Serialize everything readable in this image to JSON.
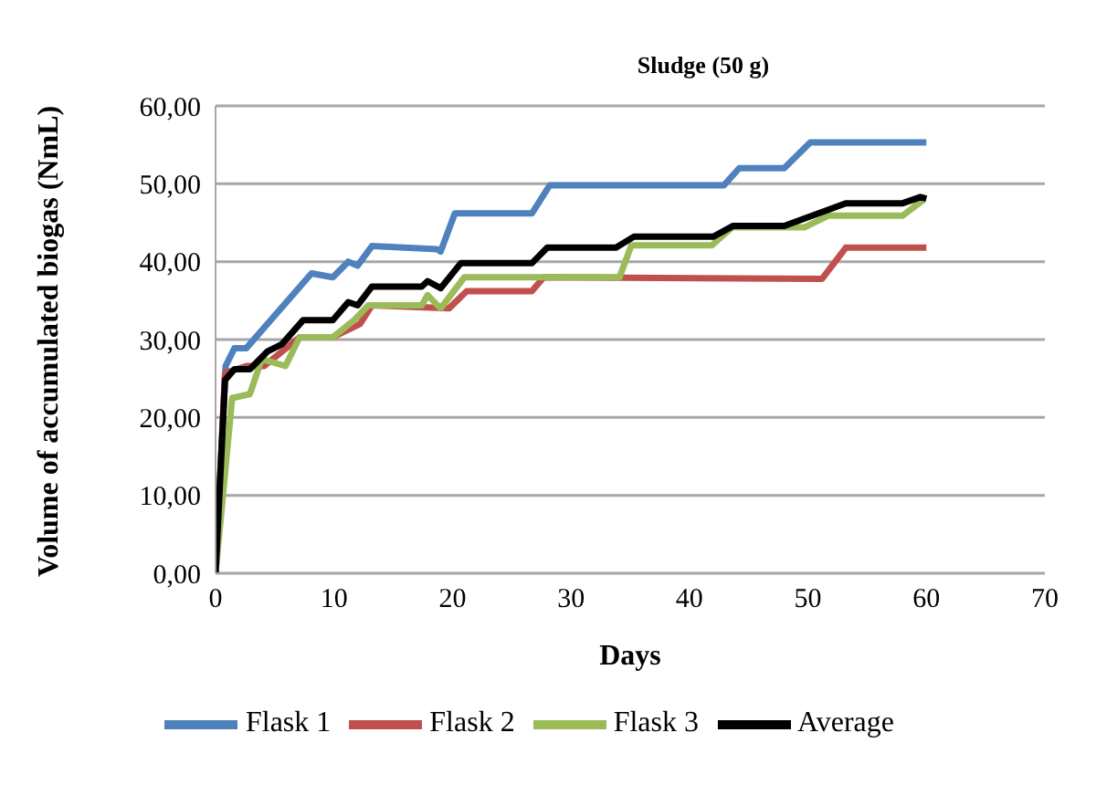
{
  "chart_data": {
    "type": "line",
    "title": "Sludge (50 g)",
    "xlabel": "Days",
    "ylabel": "Volume of accumulated biogas (NmL)",
    "xlim": [
      0,
      70
    ],
    "xticks": [
      0,
      10,
      20,
      30,
      40,
      50,
      60,
      70
    ],
    "ylim": [
      0,
      60
    ],
    "yticks": [
      {
        "value": 0,
        "label": "0,00"
      },
      {
        "value": 10,
        "label": "10,00"
      },
      {
        "value": 20,
        "label": "20,00"
      },
      {
        "value": 30,
        "label": "30,00"
      },
      {
        "value": 40,
        "label": "40,00"
      },
      {
        "value": 50,
        "label": "50,00"
      },
      {
        "value": 60,
        "label": "60,00"
      }
    ],
    "grid": "y",
    "legend": "bottom",
    "marker": "none",
    "line_style": "solid",
    "series": [
      {
        "name": "Flask 1",
        "color": "#4f81bd",
        "x": [
          0,
          0.85,
          1.6,
          2.6,
          8.1,
          9.9,
          11.2,
          12,
          13.2,
          18.7,
          19,
          20.2,
          26.7,
          28.2,
          42.9,
          44.2,
          48,
          50.2,
          60
        ],
        "values": [
          0,
          26.6,
          28.9,
          28.9,
          38.5,
          38,
          40,
          39.5,
          42,
          41.6,
          41.3,
          46.2,
          46.2,
          49.8,
          49.8,
          52,
          52,
          55.3,
          55.3
        ]
      },
      {
        "name": "Flask 2",
        "color": "#c0504d",
        "x": [
          0,
          0.8,
          2.6,
          4.1,
          7.1,
          9.9,
          12.2,
          13.2,
          19.7,
          21.2,
          26.7,
          27.7,
          51.2,
          53.2,
          60
        ],
        "values": [
          0,
          25.7,
          26.6,
          26.6,
          30.3,
          30.3,
          32,
          34.4,
          34,
          36.2,
          36.2,
          38,
          37.8,
          41.8,
          41.8
        ]
      },
      {
        "name": "Flask 3",
        "color": "#9bbb59",
        "x": [
          0,
          1.4,
          2.9,
          3.9,
          5.9,
          7.1,
          9.9,
          11.7,
          12.9,
          17.4,
          17.9,
          19,
          21,
          34.1,
          35.1,
          41.9,
          43.6,
          49.7,
          51.7,
          58,
          59.8
        ],
        "values": [
          0,
          22.5,
          23,
          27.5,
          26.6,
          30.3,
          30.3,
          32.5,
          34.4,
          34.4,
          35.7,
          34,
          38,
          38,
          42.1,
          42.1,
          44.4,
          44.4,
          45.9,
          45.9,
          48
        ]
      },
      {
        "name": "Average",
        "color": "#000000",
        "x": [
          0,
          0.8,
          1.6,
          2.9,
          4.4,
          5.6,
          7.4,
          9.9,
          11.2,
          12,
          13.2,
          17.4,
          17.9,
          19,
          20.7,
          26.7,
          28,
          33.8,
          35.3,
          42,
          43.7,
          48,
          53.2,
          58,
          59.5,
          60
        ],
        "values": [
          0,
          24.8,
          26.2,
          26.2,
          28.5,
          29.4,
          32.5,
          32.5,
          34.8,
          34.4,
          36.8,
          36.8,
          37.5,
          36.6,
          39.8,
          39.8,
          41.8,
          41.8,
          43.2,
          43.2,
          44.6,
          44.6,
          47.5,
          47.5,
          48.3,
          48.1
        ]
      }
    ]
  }
}
